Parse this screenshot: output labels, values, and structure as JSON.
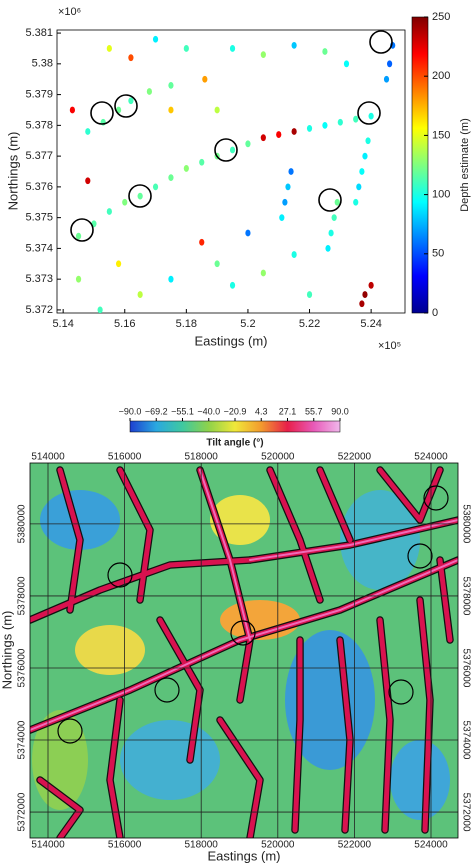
{
  "chart_data": [
    {
      "type": "scatter",
      "x_label": "Eastings (m)",
      "y_label": "Northings (m)",
      "x_multiplier": "×10⁵",
      "y_multiplier": "×10⁶",
      "colorbar_label": "Depth estimate (m)",
      "x": [
        5.145,
        5.15,
        5.155,
        5.16,
        5.165,
        5.17,
        5.175,
        5.18,
        5.185,
        5.19,
        5.195,
        5.2,
        5.148,
        5.153,
        5.158,
        5.162,
        5.168,
        5.175,
        5.205,
        5.21,
        5.215,
        5.22,
        5.225,
        5.23,
        5.235,
        5.24,
        5.229,
        5.228,
        5.227,
        5.226,
        5.214,
        5.213,
        5.212,
        5.211,
        5.239,
        5.238,
        5.237,
        5.236,
        5.235,
        5.247,
        5.246,
        5.245,
        5.237,
        5.238,
        5.24,
        5.155,
        5.162,
        5.17,
        5.18,
        5.186,
        5.195,
        5.205,
        5.215,
        5.225,
        5.232,
        5.143,
        5.148,
        5.158,
        5.165,
        5.175,
        5.185,
        5.19,
        5.195,
        5.2,
        5.205,
        5.22,
        5.215,
        5.175,
        5.19,
        5.145,
        5.152
      ],
      "y": [
        5.3744,
        5.3748,
        5.3752,
        5.3755,
        5.3757,
        5.376,
        5.3763,
        5.3766,
        5.3768,
        5.377,
        5.3772,
        5.3774,
        5.3778,
        5.3781,
        5.3785,
        5.3788,
        5.3791,
        5.3793,
        5.3776,
        5.3777,
        5.3778,
        5.3779,
        5.378,
        5.3781,
        5.3782,
        5.3783,
        5.3755,
        5.375,
        5.3745,
        5.374,
        5.3765,
        5.376,
        5.3755,
        5.375,
        5.3775,
        5.377,
        5.3765,
        5.376,
        5.3755,
        5.3806,
        5.38,
        5.3795,
        5.3722,
        5.3725,
        5.3728,
        5.3805,
        5.3802,
        5.3808,
        5.3805,
        5.3795,
        5.3805,
        5.3803,
        5.3806,
        5.3804,
        5.38,
        5.3785,
        5.3762,
        5.3735,
        5.3725,
        5.373,
        5.3742,
        5.3735,
        5.3728,
        5.3745,
        5.3732,
        5.3725,
        5.3738,
        5.3785,
        5.3785,
        5.373,
        5.372
      ],
      "values": [
        120,
        115,
        110,
        125,
        118,
        112,
        120,
        128,
        115,
        122,
        110,
        118,
        105,
        115,
        120,
        110,
        125,
        118,
        230,
        220,
        240,
        100,
        95,
        105,
        110,
        100,
        120,
        110,
        100,
        90,
        60,
        80,
        70,
        90,
        100,
        90,
        95,
        85,
        100,
        60,
        55,
        70,
        240,
        245,
        235,
        150,
        200,
        90,
        110,
        180,
        100,
        130,
        80,
        120,
        95,
        220,
        230,
        160,
        140,
        90,
        210,
        120,
        100,
        60,
        130,
        110,
        100,
        170,
        140,
        130,
        110
      ],
      "xlim": [
        5.138,
        5.251
      ],
      "ylim": [
        5.3719,
        5.3811
      ],
      "xticks": [
        5.14,
        5.16,
        5.18,
        5.2,
        5.22,
        5.24
      ],
      "yticks": [
        5.372,
        5.373,
        5.374,
        5.375,
        5.376,
        5.377,
        5.378,
        5.379,
        5.38,
        5.381
      ],
      "clim": [
        0,
        250
      ],
      "cticks": [
        0,
        50,
        100,
        150,
        200,
        250
      ],
      "colormap": "jet"
    },
    {
      "type": "raster",
      "x_label": "Eastings (m)",
      "y_label": "Northings (m)",
      "colorbar_label": "Tilt angle (°)",
      "xlim": [
        513530,
        524705
      ],
      "ylim": [
        5371280,
        5381690
      ],
      "xticks": [
        514000,
        516000,
        518000,
        520000,
        522000,
        524000
      ],
      "yticks": [
        5372000,
        5374000,
        5376000,
        5378000,
        5380000
      ],
      "cticks": [
        {
          "value": -90,
          "label": "−90.0"
        },
        {
          "value": -69.2,
          "label": "−69.2"
        },
        {
          "value": -55.1,
          "label": "−55.1"
        },
        {
          "value": -40,
          "label": "−40.0"
        },
        {
          "value": -20.9,
          "label": "−20.9"
        },
        {
          "value": 4.3,
          "label": "4.3"
        },
        {
          "value": 27.1,
          "label": "27.1"
        },
        {
          "value": 55.7,
          "label": "55.7"
        },
        {
          "value": 90,
          "label": "90.0"
        }
      ],
      "grid": true
    }
  ]
}
